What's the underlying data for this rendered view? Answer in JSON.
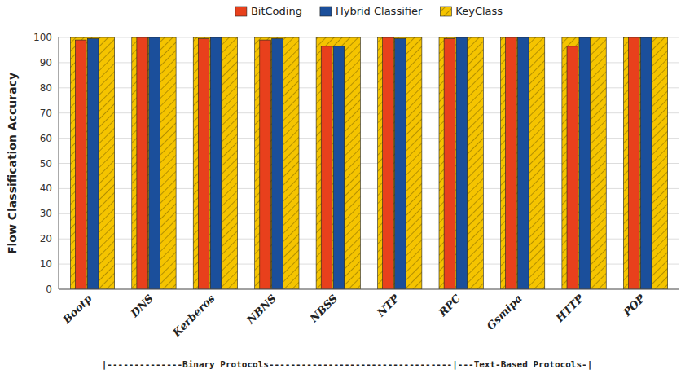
{
  "chart_data": {
    "type": "bar",
    "categories": [
      "Bootp",
      "DNS",
      "Kerberos",
      "NBNS",
      "NBSS",
      "NTP",
      "RPC",
      "Gsmipa",
      "HTTP",
      "POP"
    ],
    "series": [
      {
        "name": "BitCoding",
        "color": "#E8401C",
        "values": [
          99.0,
          100.0,
          99.5,
          99.0,
          96.5,
          100.0,
          99.5,
          100.0,
          96.5,
          100.0
        ]
      },
      {
        "name": "Hybrid Classifier",
        "color": "#1B4F9B",
        "values": [
          99.5,
          100.0,
          100.0,
          99.5,
          96.5,
          99.5,
          100.0,
          100.0,
          100.0,
          100.0
        ]
      },
      {
        "name": "KeyClass",
        "color": "#F5C400",
        "values": [
          100.0,
          100.0,
          100.0,
          100.0,
          100.0,
          100.0,
          100.0,
          100.0,
          100.0,
          100.0
        ]
      }
    ],
    "ylabel": "Flow Classification Accuracy",
    "ylim": [
      0,
      100
    ],
    "yticks": [
      0,
      10,
      20,
      30,
      40,
      50,
      60,
      70,
      80,
      90,
      100
    ],
    "grid": true,
    "legend": "top",
    "annotation": "|--------------Binary Protocols----------------------------------|---Text-Based Protocols-|"
  }
}
